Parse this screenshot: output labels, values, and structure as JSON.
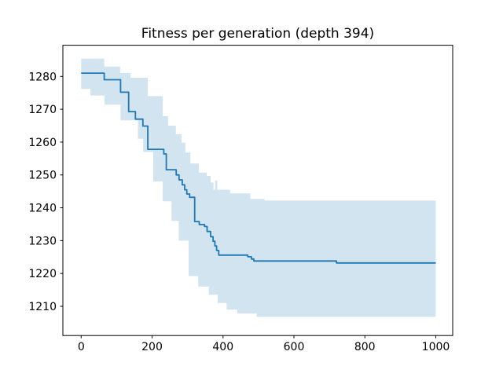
{
  "figure": {
    "background": "#ffffff"
  },
  "chart_data": {
    "type": "line",
    "title": "Fitness per generation (depth 394)",
    "xlabel": "",
    "ylabel": "",
    "grid": false,
    "legend_position": "none",
    "x_ticks": [
      0,
      200,
      400,
      600,
      800,
      1000
    ],
    "y_ticks": [
      1210,
      1220,
      1230,
      1240,
      1250,
      1260,
      1270,
      1280
    ],
    "xlim": [
      -51.6,
      1047.7
    ],
    "ylim": [
      1201.1,
      1289.5
    ],
    "line_color": "#1f77b4",
    "line_width": 1.8,
    "band_color": "#1f77b4",
    "band_opacity": 0.2,
    "spine_color": "#000000",
    "series": [
      {
        "name": "mean-fitness",
        "step": "post",
        "points": [
          [
            0,
            1281
          ],
          [
            65,
            1279
          ],
          [
            111,
            1275.2
          ],
          [
            134,
            1269.3
          ],
          [
            153,
            1267
          ],
          [
            174,
            1264.9
          ],
          [
            188,
            1257.8
          ],
          [
            233,
            1256.4
          ],
          [
            240,
            1251.6
          ],
          [
            268,
            1250
          ],
          [
            276,
            1248.5
          ],
          [
            285,
            1247
          ],
          [
            292,
            1245.5
          ],
          [
            298,
            1244.2
          ],
          [
            306,
            1243.2
          ],
          [
            320,
            1235.8
          ],
          [
            333,
            1234.9
          ],
          [
            348,
            1234.3
          ],
          [
            355,
            1232.8
          ],
          [
            365,
            1231.2
          ],
          [
            372,
            1229.8
          ],
          [
            377,
            1228.4
          ],
          [
            382,
            1227
          ],
          [
            388,
            1225.6
          ],
          [
            470,
            1225.1
          ],
          [
            480,
            1224.4
          ],
          [
            487,
            1223.8
          ],
          [
            720,
            1223.2
          ],
          [
            1000,
            1223.2
          ]
        ]
      }
    ],
    "band": {
      "name": "fitness-std-band",
      "upper": [
        [
          0,
          1285.4
        ],
        [
          65,
          1283
        ],
        [
          110,
          1281
        ],
        [
          139,
          1279.6
        ],
        [
          188,
          1274
        ],
        [
          230,
          1267.9
        ],
        [
          245,
          1265
        ],
        [
          267,
          1262.4
        ],
        [
          283,
          1259.8
        ],
        [
          294,
          1256.8
        ],
        [
          308,
          1253.5
        ],
        [
          332,
          1250.7
        ],
        [
          354,
          1249.7
        ],
        [
          365,
          1247.7
        ],
        [
          373,
          1245.5
        ],
        [
          378,
          1248.3
        ],
        [
          384,
          1245.5
        ],
        [
          420,
          1244.4
        ],
        [
          477,
          1242.7
        ],
        [
          517,
          1242.2
        ],
        [
          1000,
          1242.2
        ]
      ],
      "lower": [
        [
          0,
          1276.2
        ],
        [
          26,
          1274.2
        ],
        [
          66,
          1271.4
        ],
        [
          111,
          1266.6
        ],
        [
          160,
          1261
        ],
        [
          175,
          1257
        ],
        [
          203,
          1248
        ],
        [
          230,
          1242
        ],
        [
          255,
          1236
        ],
        [
          275,
          1230
        ],
        [
          303,
          1219.2
        ],
        [
          330,
          1216
        ],
        [
          360,
          1213.5
        ],
        [
          385,
          1211
        ],
        [
          410,
          1209
        ],
        [
          440,
          1207.8
        ],
        [
          495,
          1206.8
        ],
        [
          1000,
          1206.8
        ]
      ]
    }
  }
}
